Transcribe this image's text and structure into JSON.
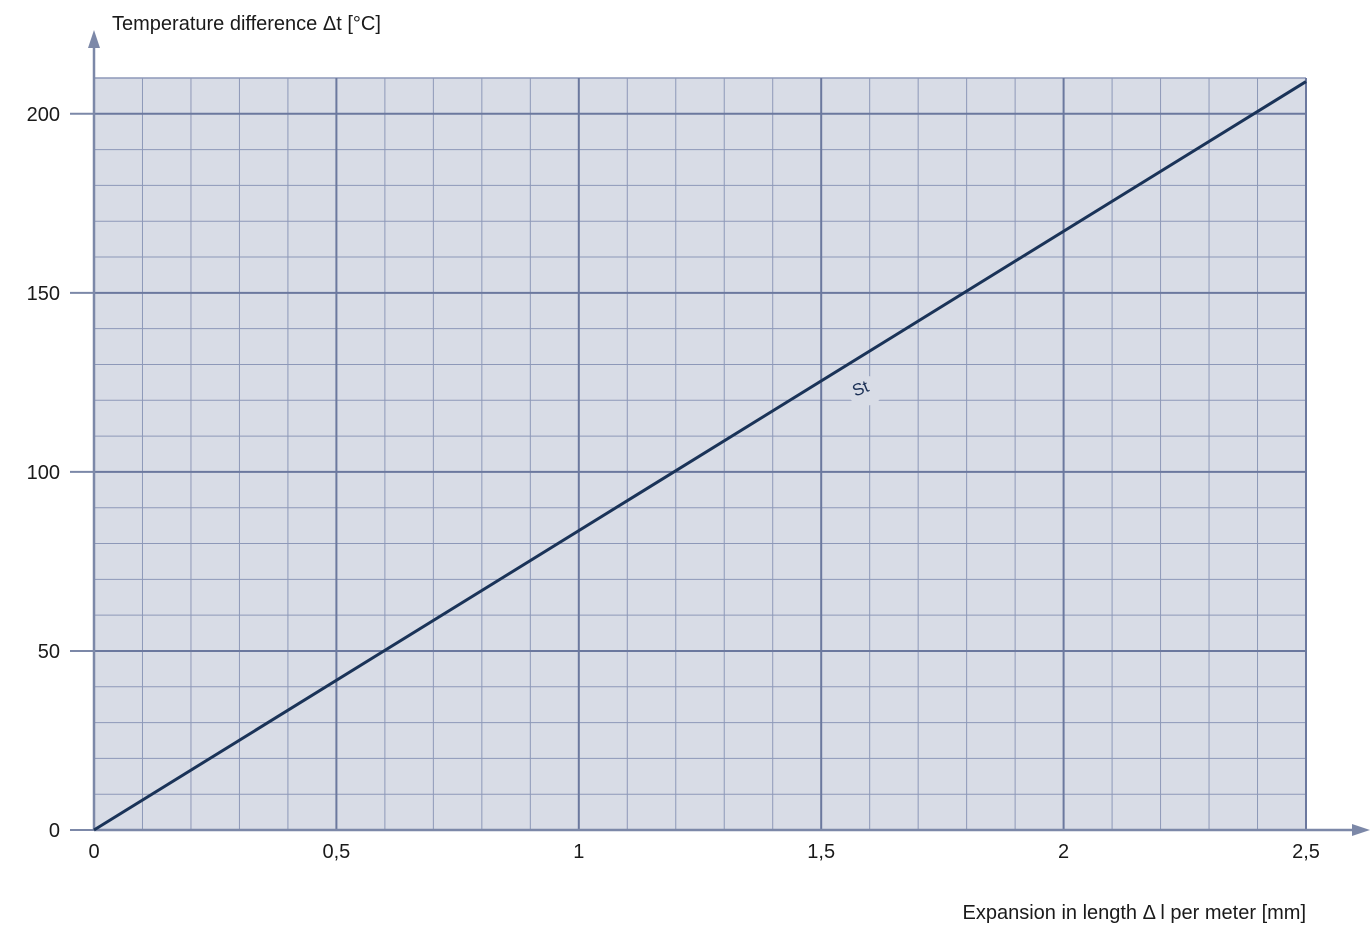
{
  "chart_data": {
    "type": "line",
    "title": "",
    "ylabel": "Temperature difference Δt [°C]",
    "xlabel": "Expansion in length Δ l per meter [mm]",
    "xlim": [
      0,
      2.5
    ],
    "ylim": [
      0,
      210
    ],
    "x_ticks": [
      0,
      0.5,
      1,
      1.5,
      2,
      2.5
    ],
    "x_tick_labels": [
      "0",
      "0,5",
      "1",
      "1,5",
      "2",
      "2,5"
    ],
    "y_ticks": [
      0,
      50,
      100,
      150,
      200
    ],
    "y_tick_labels": [
      "0",
      "50",
      "100",
      "150",
      "200"
    ],
    "x_minor_step": 0.1,
    "y_minor_step": 10,
    "grid": true,
    "series": [
      {
        "name": "St",
        "x": [
          0,
          2.5
        ],
        "y": [
          0,
          209
        ]
      }
    ],
    "annotations": [
      {
        "text": "St",
        "x": 1.57,
        "y": 121
      }
    ],
    "colors": {
      "plot_background": "#d8dce6",
      "grid_minor": "#8d98b8",
      "grid_major": "#6b789e",
      "axis": "#7c88a8",
      "line": "#1a3358"
    }
  }
}
